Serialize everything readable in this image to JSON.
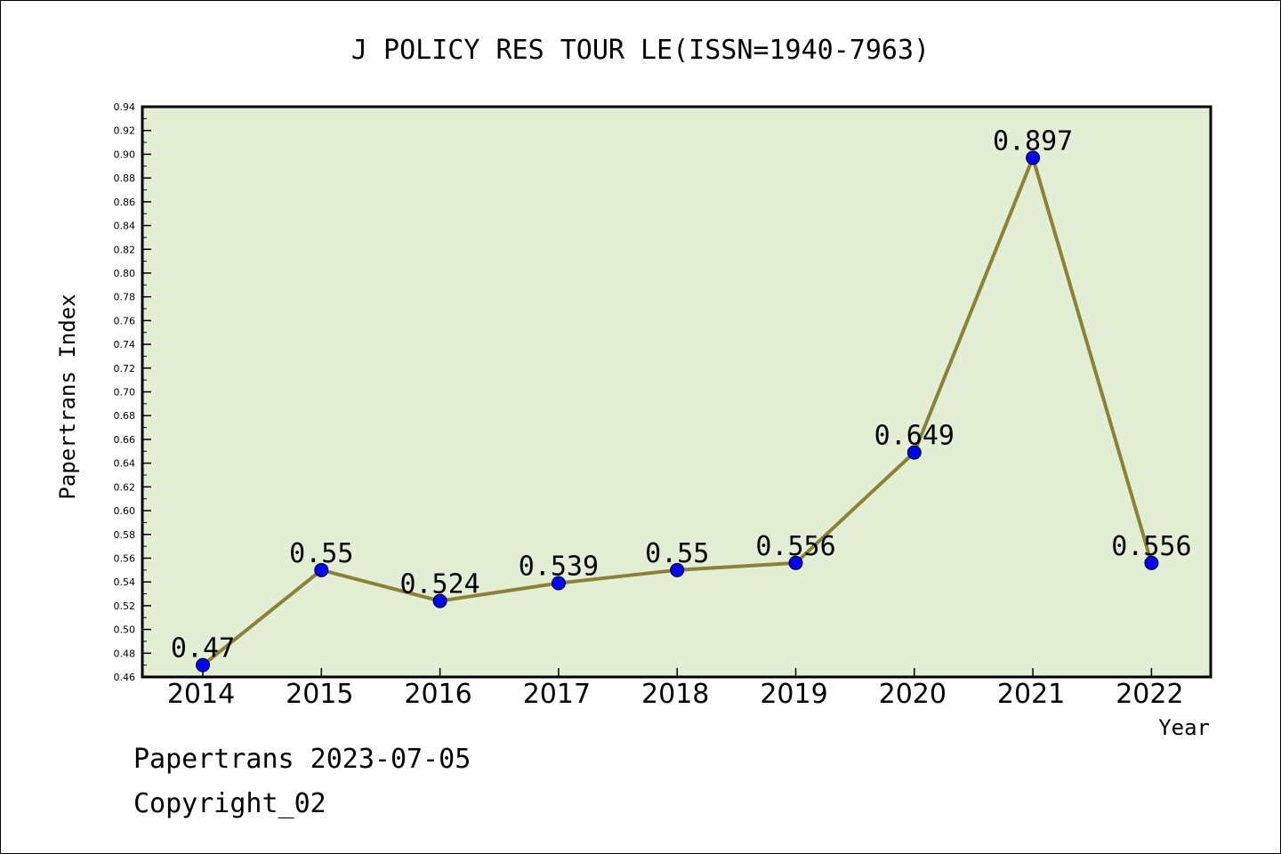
{
  "footer": {
    "line1": "Papertrans 2023-07-05",
    "line2": "Copyright_02"
  },
  "chart_data": {
    "type": "line",
    "title": "J POLICY RES TOUR LE(ISSN=1940-7963)",
    "xlabel": "Year",
    "ylabel": "Papertrans Index",
    "categories": [
      "2014",
      "2015",
      "2016",
      "2017",
      "2018",
      "2019",
      "2020",
      "2021",
      "2022"
    ],
    "values": [
      0.47,
      0.55,
      0.524,
      0.539,
      0.55,
      0.556,
      0.649,
      0.897,
      0.556
    ],
    "data_labels": [
      "0.47",
      "0.55",
      "0.524",
      "0.539",
      "0.55",
      "0.556",
      "0.649",
      "0.897",
      "0.556"
    ],
    "ylim": [
      0.46,
      0.94
    ],
    "y_ticks": [
      "0.46",
      "0.48",
      "0.50",
      "0.52",
      "0.54",
      "0.56",
      "0.58",
      "0.60",
      "0.62",
      "0.64",
      "0.66",
      "0.68",
      "0.70",
      "0.72",
      "0.74",
      "0.76",
      "0.78",
      "0.80",
      "0.82",
      "0.84",
      "0.86",
      "0.88",
      "0.90",
      "0.92",
      "0.94"
    ],
    "grid": false,
    "legend": "none",
    "colors": {
      "plot_background": "#e2efd4",
      "line": "#8b8237",
      "marker": "#0000ff"
    }
  }
}
